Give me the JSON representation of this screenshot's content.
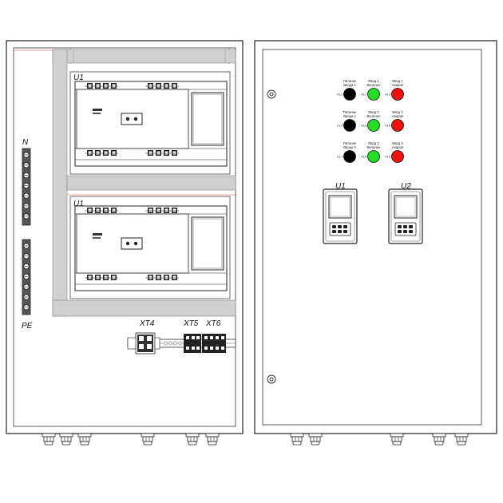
{
  "left_cabinet": {
    "busbar_n_label": "N",
    "busbar_pe_label": "PE",
    "switches": [
      {
        "label": "U1"
      },
      {
        "label": "U1"
      }
    ],
    "terminals": [
      {
        "label": "XT4"
      },
      {
        "label": "XT5"
      },
      {
        "label": "XT6"
      }
    ]
  },
  "right_cabinet": {
    "lamp_rows": [
      {
        "lamps": [
          {
            "code": "HL1",
            "color": "#000000",
            "caption_1": "Питание",
            "caption_2": "Ввода 1"
          },
          {
            "code": "HL2",
            "color": "#22dd22",
            "caption_1": "Ввод 1",
            "caption_2": "Включен"
          },
          {
            "code": "HL3",
            "color": "#ee1111",
            "caption_1": "Ввод 1",
            "caption_2": "Авария"
          }
        ]
      },
      {
        "lamps": [
          {
            "code": "HL4",
            "color": "#000000",
            "caption_1": "Питание",
            "caption_2": "Ввода 2"
          },
          {
            "code": "HL5",
            "color": "#22dd22",
            "caption_1": "Ввод 2",
            "caption_2": "Включен"
          },
          {
            "code": "HL6",
            "color": "#ee1111",
            "caption_1": "Ввод 2",
            "caption_2": "Авария"
          }
        ]
      },
      {
        "lamps": [
          {
            "code": "HL7",
            "color": "#000000",
            "caption_1": "Питание",
            "caption_2": "Ввода 3"
          },
          {
            "code": "HL8",
            "color": "#22dd22",
            "caption_1": "Ввод 3",
            "caption_2": "Включен"
          },
          {
            "code": "HL9",
            "color": "#ee1111",
            "caption_1": "Ввод 3",
            "caption_2": "Авария"
          }
        ]
      }
    ],
    "controllers": [
      {
        "label": "U1"
      },
      {
        "label": "U2"
      }
    ]
  }
}
